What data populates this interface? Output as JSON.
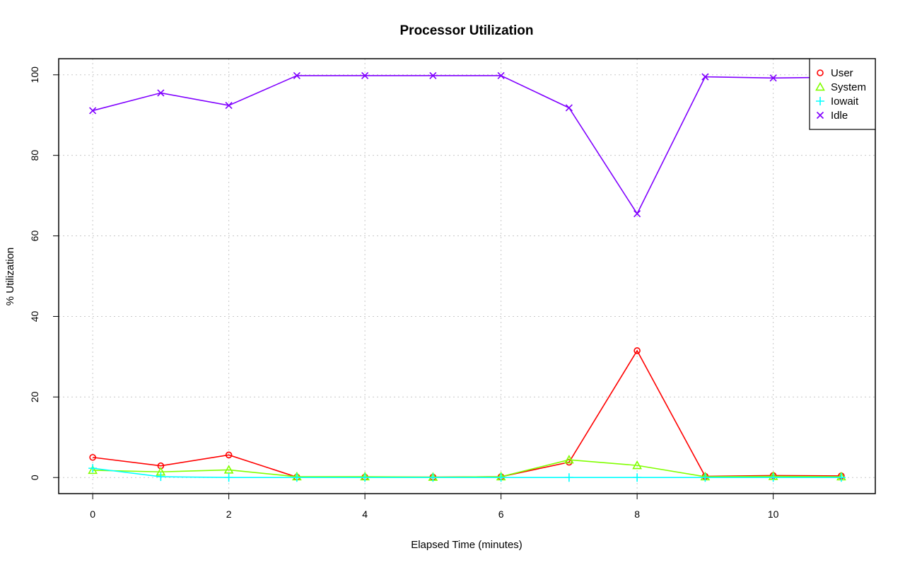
{
  "chart_data": {
    "type": "line",
    "title": "Processor Utilization",
    "xlabel": "Elapsed Time (minutes)",
    "ylabel": "% Utilization",
    "xlim": [
      -0.5,
      11.5
    ],
    "ylim": [
      -4,
      104
    ],
    "x_ticks": [
      0,
      2,
      4,
      6,
      8,
      10
    ],
    "y_ticks": [
      0,
      20,
      40,
      60,
      80,
      100
    ],
    "grid": true,
    "legend_position": "top-right",
    "x": [
      0,
      1,
      2,
      3,
      4,
      5,
      6,
      7,
      8,
      9,
      10,
      11
    ],
    "series": [
      {
        "name": "User",
        "color": "#ff0000",
        "marker": "circle",
        "values": [
          5.0,
          2.9,
          5.6,
          0.1,
          0.1,
          0.1,
          0.2,
          3.8,
          31.5,
          0.3,
          0.5,
          0.4
        ]
      },
      {
        "name": "System",
        "color": "#80ff00",
        "marker": "triangle",
        "values": [
          1.8,
          1.4,
          1.9,
          0.2,
          0.2,
          0.1,
          0.2,
          4.4,
          3.0,
          0.2,
          0.3,
          0.2
        ]
      },
      {
        "name": "Iowait",
        "color": "#00ffff",
        "marker": "plus",
        "values": [
          2.3,
          0.2,
          0.0,
          0.0,
          0.0,
          0.0,
          0.0,
          0.0,
          0.0,
          0.0,
          0.0,
          0.0
        ]
      },
      {
        "name": "Idle",
        "color": "#8000ff",
        "marker": "cross",
        "values": [
          91.1,
          95.5,
          92.4,
          99.8,
          99.8,
          99.8,
          99.8,
          91.8,
          65.5,
          99.5,
          99.2,
          99.4
        ]
      }
    ]
  }
}
